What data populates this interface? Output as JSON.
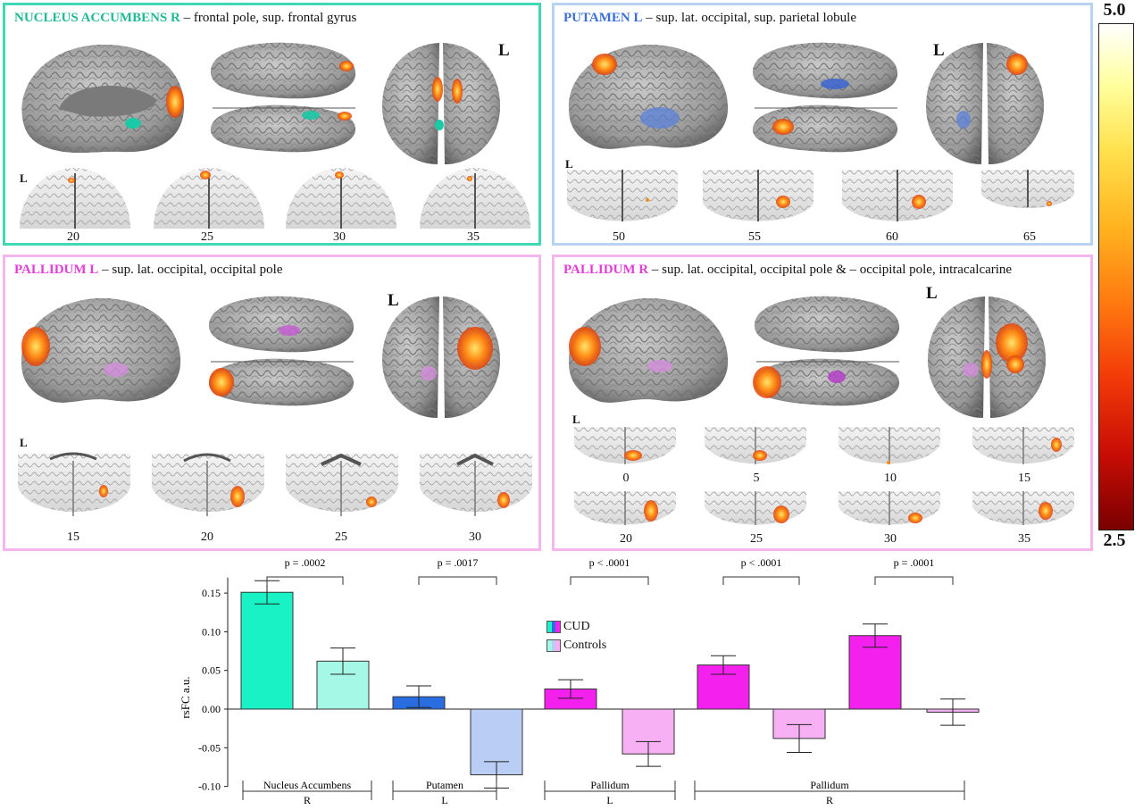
{
  "panels": {
    "nacc": {
      "region": "NUCLEUS ACCUMBENS R",
      "rest": " – frontal pole, sup. frontal gyrus",
      "l_big": "L",
      "l_small": "L",
      "slices": [
        "20",
        "25",
        "30",
        "35"
      ]
    },
    "put": {
      "region": "PUTAMEN L",
      "rest": " – sup. lat. occipital, sup. parietal lobule",
      "l_big": "L",
      "l_small": "L",
      "slices": [
        "50",
        "55",
        "60",
        "65"
      ]
    },
    "palL": {
      "region": "PALLIDUM L",
      "rest": " – sup. lat. occipital, occipital pole",
      "l_big": "L",
      "l_small": "L",
      "slices": [
        "15",
        "20",
        "25",
        "30"
      ]
    },
    "palR": {
      "region": "PALLIDUM R",
      "rest": " – sup. lat. occipital, occipital pole & – occipital pole, intracalcarine",
      "l_big": "L",
      "l_small": "L",
      "slices": [
        "0",
        "5",
        "10",
        "15",
        "20",
        "25",
        "30",
        "35"
      ]
    }
  },
  "colorbar": {
    "max": "5.0",
    "min": "2.5"
  },
  "colors": {
    "nacc_cud": "#19f2c5",
    "nacc_ctrl": "#a6f8e6",
    "put_cud": "#2a6de0",
    "put_ctrl": "#b9cdf5",
    "pal_cud": "#f421ee",
    "pal_ctrl": "#f8b0f4"
  },
  "chart_data": {
    "type": "bar",
    "ylabel": "rsFC a.u.",
    "ylim": [
      -0.1,
      0.17
    ],
    "yticks": [
      "0.15",
      "0.10",
      "0.05",
      "0.00",
      "-0.05",
      "-0.10"
    ],
    "ytick_values": [
      0.15,
      0.1,
      0.05,
      0.0,
      -0.05,
      -0.1
    ],
    "legend": [
      "CUD",
      "Controls"
    ],
    "bars": [
      {
        "group": "Nucleus Accumbens R",
        "series": "CUD",
        "value": 0.151,
        "err": 0.015
      },
      {
        "group": "Nucleus Accumbens R",
        "series": "Controls",
        "value": 0.062,
        "err": 0.017
      },
      {
        "group": "Putamen L",
        "series": "CUD",
        "value": 0.016,
        "err": 0.014
      },
      {
        "group": "Putamen L",
        "series": "Controls",
        "value": -0.085,
        "err": 0.017
      },
      {
        "group": "Pallidum L",
        "series": "CUD",
        "value": 0.026,
        "err": 0.012
      },
      {
        "group": "Pallidum L",
        "series": "Controls",
        "value": -0.058,
        "err": 0.016
      },
      {
        "group": "Pallidum R",
        "series": "CUD",
        "value": 0.057,
        "err": 0.012
      },
      {
        "group": "Pallidum R",
        "series": "Controls",
        "value": -0.038,
        "err": 0.018
      },
      {
        "group": "Pallidum R",
        "series": "CUD",
        "value": 0.095,
        "err": 0.015
      },
      {
        "group": "Pallidum R",
        "series": "Controls",
        "value": -0.004,
        "err": 0.017
      }
    ],
    "pvalues": [
      "p = .0002",
      "p = .0017",
      "p < .0001",
      "p < .0001",
      "p = .0001"
    ],
    "groups": [
      {
        "name": "Nucleus Accumbens",
        "side": "R"
      },
      {
        "name": "Putamen",
        "side": "L"
      },
      {
        "name": "Pallidum",
        "side": "L"
      },
      {
        "name": "Pallidum",
        "side": "R"
      }
    ]
  }
}
